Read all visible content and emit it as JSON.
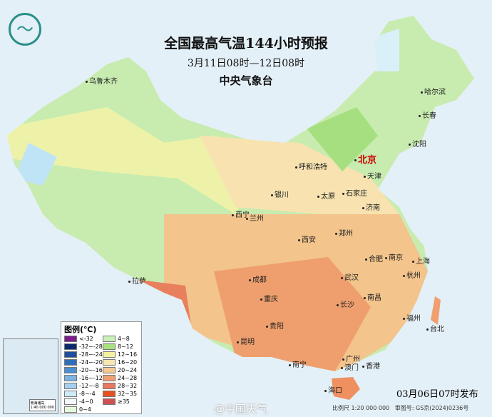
{
  "header": {
    "title": "全国最高气温144小时预报",
    "period": "3月11日08时—12日08时",
    "issuer": "中央气象台",
    "logo_icon": "cma-logo-icon"
  },
  "cities": [
    {
      "name": "北京",
      "capital": true
    },
    {
      "name": "天津"
    },
    {
      "name": "石家庄"
    },
    {
      "name": "太原"
    },
    {
      "name": "呼和浩特"
    },
    {
      "name": "济南"
    },
    {
      "name": "哈尔滨"
    },
    {
      "name": "长春"
    },
    {
      "name": "沈阳"
    },
    {
      "name": "乌鲁木齐"
    },
    {
      "name": "银川"
    },
    {
      "name": "西宁"
    },
    {
      "name": "兰州"
    },
    {
      "name": "西安"
    },
    {
      "name": "郑州"
    },
    {
      "name": "合肥"
    },
    {
      "name": "南京"
    },
    {
      "name": "上海"
    },
    {
      "name": "杭州"
    },
    {
      "name": "武汉"
    },
    {
      "name": "南昌"
    },
    {
      "name": "长沙"
    },
    {
      "name": "成都"
    },
    {
      "name": "重庆"
    },
    {
      "name": "贵阳"
    },
    {
      "name": "昆明"
    },
    {
      "name": "拉萨"
    },
    {
      "name": "福州"
    },
    {
      "name": "台北"
    },
    {
      "name": "南宁"
    },
    {
      "name": "广州"
    },
    {
      "name": "澳门"
    },
    {
      "name": "香港"
    },
    {
      "name": "海口"
    }
  ],
  "legend": {
    "title": "图例(℃)",
    "items": [
      {
        "label": "<-32",
        "color": "#7a1f8a"
      },
      {
        "label": "-32~-28",
        "color": "#0d2a6e"
      },
      {
        "label": "-28~-24",
        "color": "#1f4f9a"
      },
      {
        "label": "-24~-20",
        "color": "#2f6fba"
      },
      {
        "label": "-20~-16",
        "color": "#4a8fd0"
      },
      {
        "label": "-16~-12",
        "color": "#7ab5e5"
      },
      {
        "label": "-12~-8",
        "color": "#a5d0f0"
      },
      {
        "label": "-8~-4",
        "color": "#cdeaf8"
      },
      {
        "label": "-4~0",
        "color": "#f4fafc"
      },
      {
        "label": "0~4",
        "color": "#e6f8dc"
      },
      {
        "label": "4~8",
        "color": "#c8f0b8"
      },
      {
        "label": "8~12",
        "color": "#a8e080"
      },
      {
        "label": "12~16",
        "color": "#f2f2a0"
      },
      {
        "label": "16~20",
        "color": "#f8e6b0"
      },
      {
        "label": "20~24",
        "color": "#f5c890"
      },
      {
        "label": "24~28",
        "color": "#f0a070"
      },
      {
        "label": "28~32",
        "color": "#e87860"
      },
      {
        "label": "32~35",
        "color": "#e85020"
      },
      {
        "label": "≥35",
        "color": "#d05050"
      }
    ]
  },
  "inset": {
    "label": "南海诸岛",
    "scale": "1:40 000 000"
  },
  "footer": {
    "issued": "03月06日07时发布",
    "scale": "比例尺 1:20 000 000",
    "map_no": "审图号: GS京(2024)0236号",
    "watermark": "@中国天气"
  }
}
